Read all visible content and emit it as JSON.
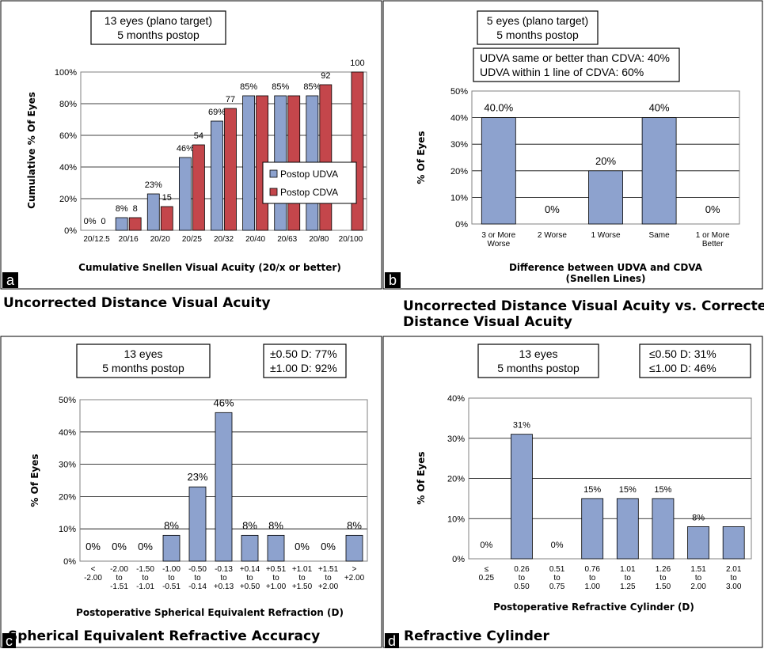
{
  "colors": {
    "udva": "#8DA2CE",
    "cdva": "#C4464B",
    "blue": "#8DA2CE",
    "bar_stroke": "#000000"
  },
  "panels": {
    "a": {
      "letter": "a",
      "caption": "Uncorrected Distance Visual Acuity",
      "info": [
        "13 eyes (plano target)",
        "5 months postop"
      ],
      "legend": [
        "Postop UDVA",
        "Postop CDVA"
      ]
    },
    "b": {
      "letter": "b",
      "caption": [
        "Uncorrected Distance Visual Acuity vs. Corrected",
        "Distance Visual Acuity"
      ],
      "info": [
        "5 eyes (plano target)",
        "5 months postop"
      ],
      "info2": [
        "UDVA same or better than CDVA: 40%",
        "UDVA within 1 line of CDVA: 60%"
      ]
    },
    "c": {
      "letter": "c",
      "caption": "Spherical Equivalent Refractive Accuracy",
      "info": [
        "13 eyes",
        "5 months postop"
      ],
      "info2": [
        "±0.50 D: 77%",
        "±1.00 D: 92%"
      ]
    },
    "d": {
      "letter": "d",
      "caption": "Refractive Cylinder",
      "info": [
        "13 eyes",
        "5 months postop"
      ],
      "info2": [
        "≤0.50 D: 31%",
        "≤1.00 D: 46%"
      ]
    }
  },
  "chart_data": [
    {
      "type": "bar",
      "categories": [
        "20/12.5",
        "20/16",
        "20/20",
        "20/25",
        "20/32",
        "20/40",
        "20/63",
        "20/80",
        "20/100"
      ],
      "series": [
        {
          "name": "Postop UDVA",
          "values": [
            0,
            8,
            23,
            46,
            69,
            85,
            85,
            85,
            null
          ],
          "labels": [
            "0%",
            "8%",
            "23%",
            "46%",
            "69%",
            "85%",
            "85%",
            "85%",
            ""
          ]
        },
        {
          "name": "Postop CDVA",
          "values": [
            0,
            8,
            15,
            54,
            77,
            85,
            85,
            92,
            100
          ],
          "labels": [
            "0",
            "8",
            "15",
            "54",
            "77",
            "",
            "",
            "92",
            "100"
          ]
        }
      ],
      "yticks": [
        "0%",
        "20%",
        "40%",
        "60%",
        "80%",
        "100%"
      ],
      "ylim": [
        0,
        100
      ],
      "xlabel": "Cumulative Snellen Visual Acuity (20/x or better)",
      "ylabel": "Cumulative % Of Eyes",
      "grid": true,
      "legend": "inside-right"
    },
    {
      "type": "bar",
      "categories": [
        [
          "3 or More",
          "Worse"
        ],
        [
          "2 Worse"
        ],
        [
          "1 Worse"
        ],
        [
          "Same"
        ],
        [
          "1 or More",
          "Better"
        ]
      ],
      "values": [
        40,
        0,
        20,
        40,
        0
      ],
      "labels": [
        "40.0%",
        "0%",
        "20%",
        "40%",
        "0%"
      ],
      "yticks": [
        "0%",
        "10%",
        "20%",
        "30%",
        "40%",
        "50%"
      ],
      "ylim": [
        0,
        50
      ],
      "xlabel": [
        "Difference between  UDVA and CDVA",
        "(Snellen Lines)"
      ],
      "ylabel": "% Of Eyes",
      "grid": true
    },
    {
      "type": "bar",
      "categories": [
        [
          "<",
          "-2.00"
        ],
        [
          "-2.00",
          "to",
          "-1.51"
        ],
        [
          "-1.50",
          "to",
          "-1.01"
        ],
        [
          "-1.00",
          "to",
          "-0.51"
        ],
        [
          "-0.50",
          "to",
          "-0.14"
        ],
        [
          "-0.13",
          "to",
          "+0.13"
        ],
        [
          "+0.14",
          "to",
          "+0.50"
        ],
        [
          "+0.51",
          "to",
          "+1.00"
        ],
        [
          "+1.01",
          "to",
          "+1.50"
        ],
        [
          "+1.51",
          "to",
          "+2.00"
        ],
        [
          ">",
          "+2.00"
        ]
      ],
      "values": [
        0,
        0,
        0,
        8,
        23,
        46,
        8,
        8,
        0,
        0,
        8
      ],
      "labels": [
        "0%",
        "0%",
        "0%",
        "8%",
        "23%",
        "46%",
        "8%",
        "8%",
        "0%",
        "0%",
        "8%"
      ],
      "yticks": [
        "0%",
        "10%",
        "20%",
        "30%",
        "40%",
        "50%"
      ],
      "ylim": [
        0,
        50
      ],
      "xlabel": "Postoperative Spherical Equivalent Refraction (D)",
      "ylabel": "% Of Eyes",
      "grid": true
    },
    {
      "type": "bar",
      "categories": [
        [
          "≤",
          "0.25"
        ],
        [
          "0.26",
          "to",
          "0.50"
        ],
        [
          "0.51",
          "to",
          "0.75"
        ],
        [
          "0.76",
          "to",
          "1.00"
        ],
        [
          "1.01",
          "to",
          "1.25"
        ],
        [
          "1.26",
          "to",
          "1.50"
        ],
        [
          "1.51",
          "to",
          "2.00"
        ],
        [
          "2.01",
          "to",
          "3.00"
        ]
      ],
      "values": [
        0,
        31,
        0,
        15,
        15,
        15,
        8,
        8
      ],
      "labels": [
        "0%",
        "31%",
        "0%",
        "15%",
        "15%",
        "15%",
        "8%",
        ""
      ],
      "yticks": [
        "0%",
        "10%",
        "20%",
        "30%",
        "40%"
      ],
      "ylim": [
        0,
        40
      ],
      "xlabel": "Postoperative Refractive Cylinder (D)",
      "ylabel": "% Of Eyes",
      "grid": true
    }
  ]
}
